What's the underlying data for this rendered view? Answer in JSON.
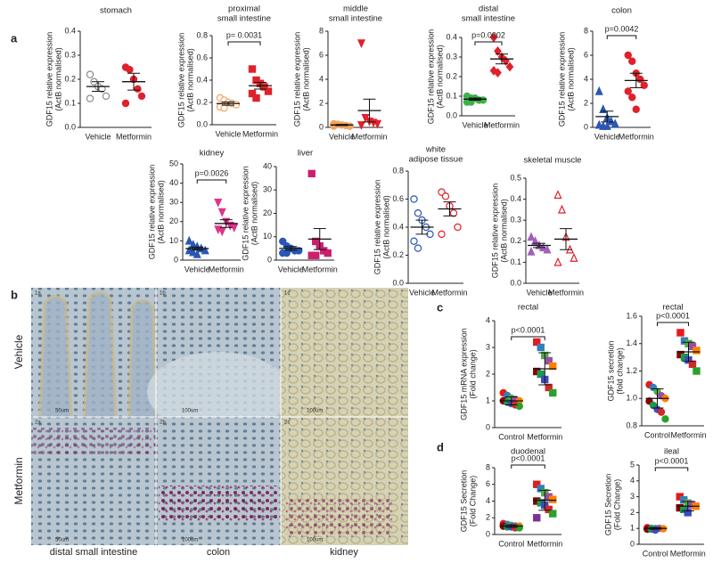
{
  "panel_labels": [
    "a",
    "b",
    "c",
    "d"
  ],
  "micrographs": {
    "row_labels": [
      "Vehicle",
      "Metformin"
    ],
    "column_labels": [
      "distal small intestine",
      "colon",
      "kidney"
    ],
    "tiles": [
      {
        "label": "1a",
        "scale": "50um"
      },
      {
        "label": "1b",
        "scale": "100um"
      },
      {
        "label": "1c",
        "scale": "100um"
      },
      {
        "label": "2a",
        "scale": "50um"
      },
      {
        "label": "2b",
        "scale": "100um"
      },
      {
        "label": "2c",
        "scale": "100um"
      }
    ]
  },
  "chart_data": [
    {
      "type": "dot",
      "title": [
        "stomach"
      ],
      "ylabel": [
        "GDF15 relative expression",
        "(ActB normalised)"
      ],
      "categories": [
        "Vehicle",
        "Metformin"
      ],
      "groups": [
        {
          "color": "#8a8a8a",
          "marker": "circle",
          "filled": false,
          "values": [
            0.22,
            0.19,
            0.17,
            0.16,
            0.13,
            0.12
          ],
          "mean": 0.17,
          "error": 0.02
        },
        {
          "color": "#e0212b",
          "marker": "circle",
          "filled": true,
          "values": [
            0.25,
            0.24,
            0.2,
            0.16,
            0.13,
            0.1
          ],
          "mean": 0.19,
          "error": 0.035
        }
      ],
      "ylim": [
        0,
        0.4
      ],
      "yticks": [
        {
          "value": 0,
          "label": "0.0"
        },
        0.1,
        0.2,
        0.3,
        0.4
      ]
    },
    {
      "type": "dot",
      "title": [
        "proximal",
        "small intestine"
      ],
      "ylabel": [
        "GDF15 relative expression",
        "(ActB normalised)"
      ],
      "categories": [
        "Vehicle",
        "Metformin"
      ],
      "groups": [
        {
          "color": "#f4a460",
          "marker": "circle",
          "filled": false,
          "values": [
            0.24,
            0.22,
            0.2,
            0.19,
            0.18,
            0.16,
            0.15
          ],
          "mean": 0.19,
          "error": 0.015
        },
        {
          "color": "#e0212b",
          "marker": "square",
          "filled": true,
          "values": [
            0.5,
            0.4,
            0.37,
            0.34,
            0.3,
            0.28,
            0.24
          ],
          "mean": 0.35,
          "error": 0.03
        }
      ],
      "ylim": [
        0,
        0.8
      ],
      "yticks": [
        {
          "value": 0,
          "label": "0.0"
        },
        0.2,
        0.4,
        0.6,
        0.8
      ],
      "annotation": "p= 0.0031"
    },
    {
      "type": "dot",
      "title": [
        "middle",
        "small intestine"
      ],
      "ylabel": [
        "GDF15 relative expression",
        "(ActB normalised)"
      ],
      "categories": [
        "Vehicle",
        "Metformin"
      ],
      "groups": [
        {
          "color": "#f4a460",
          "marker": "circle",
          "filled": true,
          "values": [
            0.3,
            0.25,
            0.2,
            0.15,
            0.1,
            0.1
          ],
          "mean": 0.2,
          "error": 0.05
        },
        {
          "color": "#e0212b",
          "marker": "triangle-down",
          "filled": true,
          "values": [
            7,
            0.8,
            0.5,
            0.4,
            0.3,
            0.2
          ],
          "mean": 1.4,
          "error": 0.95
        }
      ],
      "ylim": [
        0,
        8
      ],
      "yticks": [
        0,
        2,
        4,
        6,
        8
      ]
    },
    {
      "type": "dot",
      "title": [
        "distal",
        "small intestine"
      ],
      "ylabel": [
        "GDF15 relative expression",
        "(ActB normalised)"
      ],
      "categories": [
        "Vehicle",
        "Metformin"
      ],
      "groups": [
        {
          "color": "#3cb34a",
          "marker": "circle",
          "filled": true,
          "values": [
            0.1,
            0.09,
            0.09,
            0.08,
            0.08,
            0.07,
            0.07
          ],
          "mean": 0.085,
          "error": 0.006
        },
        {
          "color": "#e0212b",
          "marker": "diamond",
          "filled": true,
          "values": [
            0.4,
            0.33,
            0.3,
            0.28,
            0.25,
            0.23,
            0.22
          ],
          "mean": 0.29,
          "error": 0.025
        }
      ],
      "ylim": [
        0,
        0.4
      ],
      "yticks": [
        {
          "value": 0,
          "label": "0.0"
        },
        0.1,
        0.2,
        0.3,
        0.4
      ],
      "annotation": "p=0.0002"
    },
    {
      "type": "dot",
      "title": [
        "colon"
      ],
      "ylabel": [
        "GDF15 relative expression",
        "(ActB normalised)"
      ],
      "categories": [
        "Vehicle",
        "Metformin"
      ],
      "groups": [
        {
          "color": "#2a56b5",
          "marker": "triangle",
          "filled": true,
          "values": [
            3,
            1.5,
            0.8,
            0.5,
            0.3,
            0.2,
            0.1,
            0.1
          ],
          "mean": 0.9,
          "error": 0.45
        },
        {
          "color": "#e0212b",
          "marker": "circle",
          "filled": true,
          "values": [
            6,
            5.5,
            4.5,
            4,
            3.5,
            3,
            2.5,
            1.5
          ],
          "mean": 3.9,
          "error": 0.6
        }
      ],
      "ylim": [
        0,
        8
      ],
      "yticks": [
        0,
        2,
        4,
        6,
        8
      ],
      "annotation": "p=0.0042"
    },
    {
      "type": "dot",
      "title": [
        "kidney"
      ],
      "ylabel": [
        "GDF15 relative expression",
        "(ActB normalised)"
      ],
      "categories": [
        "Vehicle",
        "Metformin"
      ],
      "groups": [
        {
          "color": "#2a56b5",
          "marker": "triangle",
          "filled": true,
          "values": [
            10,
            8,
            7,
            6,
            5,
            5,
            4,
            3
          ],
          "mean": 6,
          "error": 0.8
        },
        {
          "color": "#e0338a",
          "marker": "triangle-down",
          "filled": true,
          "values": [
            30,
            25,
            20,
            18,
            17,
            16,
            15
          ],
          "mean": 19,
          "error": 2
        }
      ],
      "ylim": [
        0,
        50
      ],
      "yticks": [
        0,
        10,
        20,
        30,
        40,
        50
      ],
      "annotation": "p=0.0026"
    },
    {
      "type": "dot",
      "title": [
        "liver"
      ],
      "ylabel": [
        "GDF15 relative expression",
        "(ActB normalised)"
      ],
      "categories": [
        "Vehicle",
        "Metformin"
      ],
      "groups": [
        {
          "color": "#2a56b5",
          "marker": "circle",
          "filled": true,
          "values": [
            8,
            6,
            5,
            4,
            4,
            3,
            3
          ],
          "mean": 5,
          "error": 0.8
        },
        {
          "color": "#cc1f6e",
          "marker": "square",
          "filled": true,
          "values": [
            37,
            8,
            6,
            4,
            3,
            2,
            2
          ],
          "mean": 9,
          "error": 4.5
        }
      ],
      "ylim": [
        0,
        40
      ],
      "yticks": [
        0,
        10,
        20,
        30,
        40
      ]
    },
    {
      "type": "dot",
      "title": [
        "white",
        "adipose tissue"
      ],
      "ylabel": [
        "GDF15 relative expression",
        "(ActB normalised)"
      ],
      "categories": [
        "Vehicle",
        "Metformin"
      ],
      "groups": [
        {
          "color": "#2a56b5",
          "marker": "circle",
          "filled": false,
          "values": [
            0.6,
            0.5,
            0.45,
            0.4,
            0.35,
            0.3,
            0.25
          ],
          "mean": 0.4,
          "error": 0.05
        },
        {
          "color": "#e0212b",
          "marker": "circle",
          "filled": false,
          "values": [
            0.65,
            0.62,
            0.55,
            0.5,
            0.4,
            0.35
          ],
          "mean": 0.53,
          "error": 0.05
        }
      ],
      "ylim": [
        0,
        0.8
      ],
      "yticks": [
        {
          "value": 0,
          "label": "0.0"
        },
        0.2,
        0.4,
        0.6,
        0.8
      ]
    },
    {
      "type": "dot",
      "title": [
        "skeletal muscle"
      ],
      "ylabel": [
        "GDF15 relative expression",
        "(ActB normalised)"
      ],
      "categories": [
        "Vehicle",
        "Metformin"
      ],
      "groups": [
        {
          "color": "#a060b8",
          "marker": "triangle",
          "filled": true,
          "values": [
            0.22,
            0.2,
            0.18,
            0.17,
            0.16,
            0.15
          ],
          "mean": 0.18,
          "error": 0.01
        },
        {
          "color": "#e0212b",
          "marker": "triangle",
          "filled": false,
          "values": [
            0.42,
            0.35,
            0.22,
            0.16,
            0.12,
            0.1
          ],
          "mean": 0.21,
          "error": 0.05
        }
      ],
      "ylim": [
        0,
        0.5
      ],
      "yticks": [
        {
          "value": 0,
          "label": "0.0"
        },
        0.1,
        0.2,
        0.3,
        0.4,
        0.5
      ]
    },
    {
      "type": "dot",
      "title": [
        "rectal"
      ],
      "ylabel": [
        "GDF15 mRNA expression",
        "(Fold change)"
      ],
      "categories": [
        "Control",
        "Metformin"
      ],
      "groups": [
        {
          "colors": [
            "#e41a1c",
            "#377eb8",
            "#4daf4a",
            "#984ea3",
            "#ff7f00",
            "#8b0000",
            "#1a9850",
            "#3b4cc0",
            "#d62728",
            "#2ca02c"
          ],
          "marker": "circle",
          "filled": true,
          "values": [
            1.3,
            1.2,
            1.1,
            1.05,
            1,
            1,
            0.95,
            0.9,
            0.85,
            0.8
          ],
          "mean": 1,
          "error": 0.15
        },
        {
          "colors": [
            "#e41a1c",
            "#377eb8",
            "#4daf4a",
            "#984ea3",
            "#ff7f00",
            "#8b0000",
            "#1a9850",
            "#3b4cc0",
            "#d62728",
            "#2ca02c"
          ],
          "marker": "square",
          "filled": true,
          "values": [
            3.2,
            3,
            2.7,
            2.5,
            2.3,
            2.1,
            2,
            1.8,
            1.5,
            1.3
          ],
          "mean": 2.2,
          "error": 0.6
        }
      ],
      "ylim": [
        0,
        4
      ],
      "yticks": [
        0,
        1,
        2,
        3,
        4
      ],
      "annotation": "p<0.0001"
    },
    {
      "type": "dot",
      "title": [
        "rectal"
      ],
      "ylabel": [
        "GDF15 secretion",
        "(fold change)"
      ],
      "categories": [
        "Control",
        "Metformin"
      ],
      "groups": [
        {
          "colors": [
            "#e41a1c",
            "#377eb8",
            "#4daf4a",
            "#984ea3",
            "#ff7f00",
            "#8b0000",
            "#1a9850",
            "#3b4cc0",
            "#d62728",
            "#2ca02c"
          ],
          "marker": "circle",
          "filled": true,
          "values": [
            1.1,
            1.08,
            1.05,
            1.02,
            1,
            0.98,
            0.95,
            0.92,
            0.9,
            0.85
          ],
          "mean": 1,
          "error": 0.07
        },
        {
          "colors": [
            "#e41a1c",
            "#377eb8",
            "#4daf4a",
            "#984ea3",
            "#ff7f00",
            "#8b0000",
            "#1a9850",
            "#3b4cc0",
            "#d62728",
            "#2ca02c"
          ],
          "marker": "square",
          "filled": true,
          "values": [
            1.48,
            1.42,
            1.4,
            1.38,
            1.35,
            1.32,
            1.3,
            1.28,
            1.25,
            1.2
          ],
          "mean": 1.34,
          "error": 0.07
        }
      ],
      "ylim": [
        0.8,
        1.6
      ],
      "yticks": [
        0.8,
        {
          "value": 1,
          "label": "1.0"
        },
        1.2,
        1.4,
        1.6
      ],
      "annotation": "p<0.0001"
    },
    {
      "type": "dot",
      "title": [
        "duodenal"
      ],
      "ylabel": [
        "GDF15 Secretion",
        "(Fold Change)"
      ],
      "categories": [
        "Control",
        "Metformin"
      ],
      "groups": [
        {
          "colors": [
            "#e41a1c",
            "#377eb8",
            "#4daf4a",
            "#984ea3",
            "#ff7f00",
            "#8b0000",
            "#1a9850",
            "#3b4cc0",
            "#d62728",
            "#2ca02c"
          ],
          "marker": "circle",
          "filled": true,
          "values": [
            1.3,
            1.2,
            1.1,
            1,
            1,
            1,
            0.9,
            0.9,
            0.8,
            0.8
          ],
          "mean": 1,
          "error": 0.15
        },
        {
          "colors": [
            "#e41a1c",
            "#377eb8",
            "#4daf4a",
            "#984ea3",
            "#ff7f00",
            "#8b0000",
            "#1a9850",
            "#3b4cc0",
            "#d62728",
            "#2ca02c",
            "#7b3294"
          ],
          "marker": "square",
          "filled": true,
          "values": [
            6,
            5.5,
            5,
            4.5,
            4.2,
            4,
            3.8,
            3.5,
            3,
            2.5,
            2
          ],
          "mean": 4.1,
          "error": 1.2
        }
      ],
      "ylim": [
        0,
        8
      ],
      "yticks": [
        0,
        2,
        4,
        6,
        8
      ],
      "annotation": "p<0.0001"
    },
    {
      "type": "dot",
      "title": [
        "ileal"
      ],
      "ylabel": [
        "GDF15 Secretion",
        "(Fold Change)"
      ],
      "categories": [
        "Control",
        "Metformin"
      ],
      "groups": [
        {
          "colors": [
            "#e41a1c",
            "#377eb8",
            "#4daf4a",
            "#984ea3",
            "#ff7f00",
            "#8b0000",
            "#1a9850",
            "#3b4cc0"
          ],
          "marker": "circle",
          "filled": true,
          "values": [
            1.05,
            1,
            1,
            1,
            0.98,
            0.95,
            0.95,
            0.9
          ],
          "mean": 1,
          "error": 0.05
        },
        {
          "colors": [
            "#e41a1c",
            "#377eb8",
            "#4daf4a",
            "#984ea3",
            "#ff7f00",
            "#8b0000",
            "#1a9850",
            "#3b4cc0"
          ],
          "marker": "square",
          "filled": true,
          "values": [
            3,
            2.8,
            2.6,
            2.5,
            2.4,
            2.3,
            2.2,
            2
          ],
          "mean": 2.4,
          "error": 0.3
        }
      ],
      "ylim": [
        0,
        5
      ],
      "yticks": [
        0,
        1,
        2,
        3,
        4,
        5
      ],
      "annotation": "p<0.0001"
    }
  ]
}
